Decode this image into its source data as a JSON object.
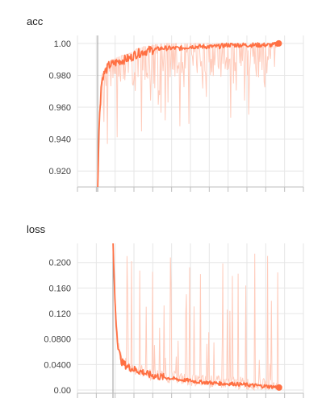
{
  "chart_data": [
    {
      "type": "line",
      "title": "acc",
      "ylim": [
        0.91,
        1.005
      ],
      "x_range": [
        0,
        100
      ],
      "yticks": [
        0.92,
        0.94,
        0.96,
        0.98,
        1.0
      ],
      "ytick_labels": [
        "0.920",
        "0.940",
        "0.960",
        "0.980",
        "1.00"
      ],
      "xticks": [
        0,
        10,
        20,
        30,
        40,
        50,
        60,
        70,
        80,
        90,
        100
      ],
      "grid": true,
      "colors": {
        "smoothed": "#ff7043",
        "raw": "#ffccbc"
      },
      "series": [
        {
          "x": [
            0,
            1,
            2,
            3,
            4,
            5,
            6,
            8,
            10,
            12,
            15,
            18,
            20,
            25,
            30,
            35,
            40,
            45,
            50,
            55,
            60,
            65,
            70,
            75,
            80,
            85,
            90,
            95,
            98
          ],
          "values": [
            0.91,
            0.955,
            0.975,
            0.98,
            0.982,
            0.984,
            0.986,
            0.987,
            0.988,
            0.989,
            0.99,
            0.991,
            0.993,
            0.995,
            0.996,
            0.997,
            0.997,
            0.997,
            0.998,
            0.998,
            0.998,
            0.998,
            0.999,
            0.999,
            0.999,
            0.999,
            0.999,
            0.999,
            1.0
          ]
        }
      ]
    },
    {
      "type": "line",
      "title": "loss",
      "ylim": [
        -0.005,
        0.23
      ],
      "x_range": [
        0,
        100
      ],
      "yticks": [
        0.0,
        0.04,
        0.08,
        0.12,
        0.16,
        0.2
      ],
      "ytick_labels": [
        "0.00",
        "0.0400",
        "0.0800",
        "0.120",
        "0.160",
        "0.200"
      ],
      "xticks": [
        0,
        10,
        20,
        30,
        40,
        50,
        60,
        70,
        80,
        90,
        100
      ],
      "grid": true,
      "colors": {
        "smoothed": "#ff7043",
        "raw": "#ffccbc"
      },
      "series": [
        {
          "x": [
            0,
            1,
            2,
            3,
            4,
            5,
            6,
            8,
            10,
            12,
            15,
            18,
            20,
            25,
            30,
            35,
            40,
            45,
            50,
            55,
            60,
            65,
            70,
            75,
            80,
            85,
            90,
            95,
            98
          ],
          "values": [
            0.23,
            0.15,
            0.1,
            0.07,
            0.055,
            0.045,
            0.042,
            0.038,
            0.035,
            0.033,
            0.03,
            0.028,
            0.025,
            0.022,
            0.02,
            0.018,
            0.016,
            0.015,
            0.013,
            0.012,
            0.011,
            0.01,
            0.01,
            0.009,
            0.008,
            0.007,
            0.006,
            0.005,
            0.004
          ]
        }
      ]
    }
  ]
}
